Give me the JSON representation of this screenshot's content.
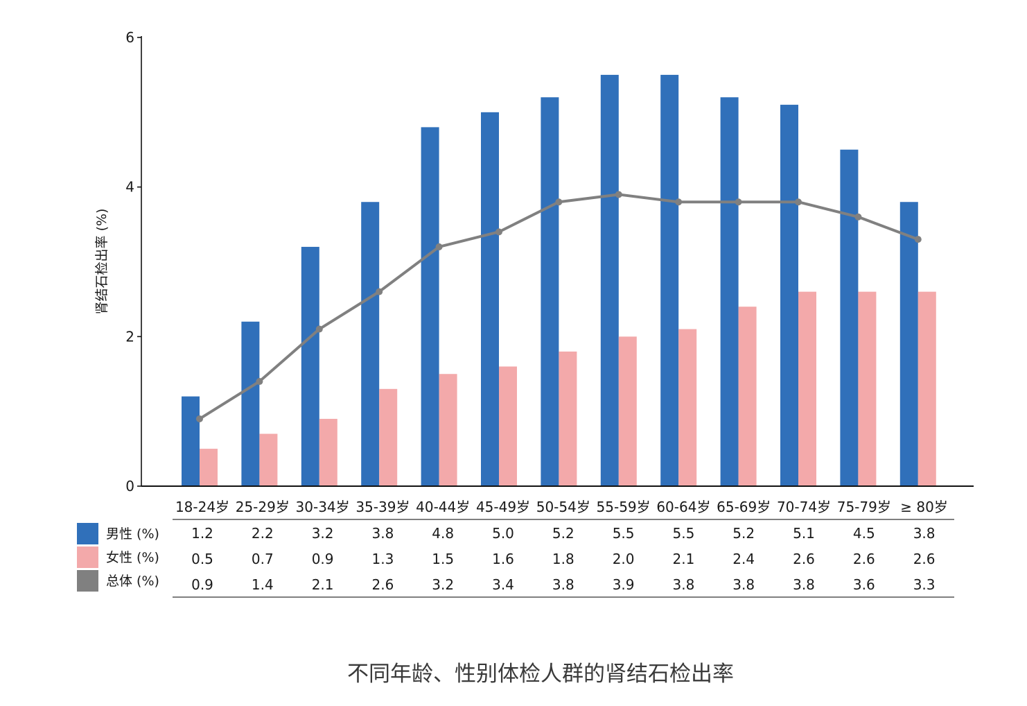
{
  "chart_data": {
    "type": "bar",
    "title": "不同年龄、性别体检人群的肾结石检出率",
    "ylabel": "肾结石检出率 (%)",
    "ylim": [
      0,
      6
    ],
    "yticks": [
      0,
      2,
      4,
      6
    ],
    "grid": false,
    "legend": "bottom-left",
    "categories": [
      "18-24岁",
      "25-29岁",
      "30-34岁",
      "35-39岁",
      "40-44岁",
      "45-49岁",
      "50-54岁",
      "55-59岁",
      "60-64岁",
      "65-69岁",
      "70-74岁",
      "75-79岁",
      "≥ 80岁"
    ],
    "series": [
      {
        "name": "男性 (%)",
        "type": "bar",
        "color": "#3070ba",
        "values": [
          1.2,
          2.2,
          3.2,
          3.8,
          4.8,
          5.0,
          5.2,
          5.5,
          5.5,
          5.2,
          5.1,
          4.5,
          3.8
        ]
      },
      {
        "name": "女性 (%)",
        "type": "bar",
        "color": "#f3a9aa",
        "values": [
          0.5,
          0.7,
          0.9,
          1.3,
          1.5,
          1.6,
          1.8,
          2.0,
          2.1,
          2.4,
          2.6,
          2.6,
          2.6
        ]
      },
      {
        "name": "总体 (%)",
        "type": "line",
        "color": "#808080",
        "values": [
          0.9,
          1.4,
          2.1,
          2.6,
          3.2,
          3.4,
          3.8,
          3.9,
          3.8,
          3.8,
          3.8,
          3.6,
          3.3
        ]
      }
    ]
  }
}
